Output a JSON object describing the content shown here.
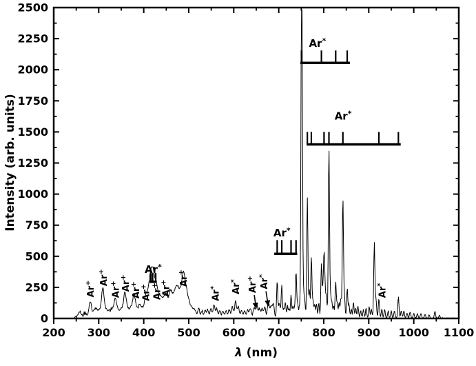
{
  "chart_data": {
    "type": "line",
    "title": "",
    "xlabel_symbol": "λ",
    "xlabel_rest": " (nm)",
    "ylabel": "Intensity (arb. units)",
    "xlim": [
      200,
      1100
    ],
    "ylim": [
      0,
      2500
    ],
    "x_major_ticks": [
      200,
      300,
      400,
      500,
      600,
      700,
      800,
      900,
      1000,
      1100
    ],
    "x_minor_step": 50,
    "y_major_ticks": [
      0,
      250,
      500,
      750,
      1000,
      1250,
      1500,
      1750,
      2000,
      2250,
      2500
    ],
    "y_minor_step": 125,
    "series_color": "#000000",
    "background_color": "#ffffff",
    "legend": null,
    "grid": false,
    "peaks": [
      [
        258,
        45
      ],
      [
        270,
        28
      ],
      [
        281,
        125
      ],
      [
        289,
        45
      ],
      [
        295,
        65
      ],
      [
        302,
        50
      ],
      [
        309,
        235
      ],
      [
        316,
        60
      ],
      [
        323,
        48
      ],
      [
        330,
        62
      ],
      [
        337,
        150
      ],
      [
        344,
        58
      ],
      [
        351,
        68
      ],
      [
        358,
        195
      ],
      [
        364,
        65
      ],
      [
        371,
        78
      ],
      [
        378,
        175
      ],
      [
        384,
        72
      ],
      [
        391,
        95
      ],
      [
        397,
        65
      ],
      [
        404,
        150
      ],
      [
        409,
        125
      ],
      [
        413,
        150
      ],
      [
        416,
        195
      ],
      [
        420,
        265
      ],
      [
        424,
        165
      ],
      [
        428,
        190
      ],
      [
        433,
        135
      ],
      [
        438,
        115
      ],
      [
        443,
        108
      ],
      [
        448,
        132
      ],
      [
        452,
        100
      ],
      [
        457,
        112
      ],
      [
        461,
        148
      ],
      [
        466,
        118
      ],
      [
        470,
        132
      ],
      [
        474,
        162
      ],
      [
        478,
        122
      ],
      [
        482,
        138
      ],
      [
        486,
        145
      ],
      [
        489,
        220
      ],
      [
        493,
        152
      ],
      [
        497,
        122
      ],
      [
        502,
        88
      ],
      [
        508,
        62
      ],
      [
        514,
        52
      ],
      [
        522,
        72
      ],
      [
        529,
        48
      ],
      [
        536,
        58
      ],
      [
        542,
        62
      ],
      [
        549,
        72
      ],
      [
        556,
        102
      ],
      [
        562,
        72
      ],
      [
        569,
        58
      ],
      [
        576,
        48
      ],
      [
        583,
        58
      ],
      [
        590,
        62
      ],
      [
        597,
        78
      ],
      [
        604,
        132
      ],
      [
        610,
        88
      ],
      [
        617,
        58
      ],
      [
        624,
        52
      ],
      [
        631,
        62
      ],
      [
        637,
        72
      ],
      [
        645,
        78
      ],
      [
        651,
        112
      ],
      [
        657,
        65
      ],
      [
        663,
        72
      ],
      [
        669,
        82
      ],
      [
        677,
        132
      ],
      [
        683,
        92
      ],
      [
        688,
        112
      ],
      [
        696.5,
        300
      ],
      [
        700.5,
        95
      ],
      [
        703,
        70
      ],
      [
        706.7,
        260
      ],
      [
        711,
        75
      ],
      [
        714.7,
        122
      ],
      [
        719.5,
        92
      ],
      [
        723,
        70
      ],
      [
        727.3,
        180
      ],
      [
        731.5,
        95
      ],
      [
        735,
        80
      ],
      [
        738.4,
        370
      ],
      [
        742,
        115
      ],
      [
        746,
        90
      ],
      [
        750.4,
        1975
      ],
      [
        751.8,
        1480
      ],
      [
        755,
        160
      ],
      [
        757.5,
        130
      ],
      [
        763.5,
        960
      ],
      [
        768,
        225
      ],
      [
        772.4,
        490
      ],
      [
        776,
        140
      ],
      [
        780,
        110
      ],
      [
        784,
        105
      ],
      [
        789,
        115
      ],
      [
        794.8,
        430
      ],
      [
        798,
        180
      ],
      [
        800.6,
        470
      ],
      [
        803,
        200
      ],
      [
        806,
        160
      ],
      [
        811.5,
        1360
      ],
      [
        815,
        170
      ],
      [
        818,
        120
      ],
      [
        822,
        95
      ],
      [
        826.5,
        285
      ],
      [
        830,
        110
      ],
      [
        834,
        120
      ],
      [
        838,
        160
      ],
      [
        842.5,
        960
      ],
      [
        846,
        170
      ],
      [
        852.1,
        235
      ],
      [
        856,
        110
      ],
      [
        861,
        70
      ],
      [
        866,
        125
      ],
      [
        871,
        75
      ],
      [
        876,
        95
      ],
      [
        882,
        55
      ],
      [
        888,
        65
      ],
      [
        894,
        75
      ],
      [
        901,
        85
      ],
      [
        906,
        65
      ],
      [
        912.3,
        605
      ],
      [
        916,
        150
      ],
      [
        922.5,
        155
      ],
      [
        929,
        65
      ],
      [
        935,
        60
      ],
      [
        943,
        45
      ],
      [
        950,
        48
      ],
      [
        957,
        55
      ],
      [
        965.8,
        170
      ],
      [
        972,
        55
      ],
      [
        978,
        58
      ],
      [
        985,
        40
      ],
      [
        992,
        45
      ],
      [
        1000,
        38
      ],
      [
        1008,
        32
      ],
      [
        1016,
        38
      ],
      [
        1025,
        32
      ],
      [
        1034,
        28
      ],
      [
        1047,
        58
      ],
      [
        1057,
        22
      ]
    ],
    "noise_regions": [
      [
        200,
        246,
        2
      ],
      [
        246,
        520,
        20
      ],
      [
        520,
        693,
        14
      ],
      [
        693,
        945,
        12
      ],
      [
        945,
        1015,
        8
      ],
      [
        1015,
        1100,
        5
      ]
    ],
    "annotations": [
      {
        "base": "Ar",
        "sup": "+",
        "x": 281,
        "level": 170
      },
      {
        "base": "Ar",
        "sup": "+",
        "x": 310,
        "level": 260
      },
      {
        "base": "Ar",
        "sup": "+",
        "x": 337,
        "level": 165
      },
      {
        "base": "Ar",
        "sup": "+",
        "x": 359,
        "level": 215
      },
      {
        "base": "Ar",
        "sup": "+",
        "x": 382,
        "level": 160
      },
      {
        "base": "Ar",
        "sup": "+",
        "x": 404,
        "level": 140
      },
      {
        "base": "Ar",
        "sup": "+",
        "x": 429,
        "level": 150
      },
      {
        "base": "Ar",
        "sup": "+",
        "x": 449,
        "level": 175
      },
      {
        "base": "Ar",
        "sup": "+",
        "x": 488,
        "level": 255
      },
      {
        "base": "Ar",
        "sup": "*",
        "x": 559,
        "level": 140
      },
      {
        "base": "Ar",
        "sup": "*",
        "x": 604,
        "level": 195
      },
      {
        "base": "Ar",
        "sup": "+",
        "x": 641,
        "level": 205,
        "arrow_to": [
          650,
          75
        ]
      },
      {
        "base": "Ar",
        "sup": "*",
        "x": 667,
        "level": 235,
        "arrow_to": [
          677,
          95
        ]
      },
      {
        "base": "Ar",
        "sup": "*",
        "x": 929,
        "level": 165
      }
    ],
    "combs": [
      {
        "base": "Ar",
        "sup": "*",
        "label_x": 421,
        "label_level": 365,
        "bar": [
          413,
          429
        ],
        "bar_level": 295,
        "ticks": [
          415.8,
          419.8,
          426.6
        ],
        "tick_height": 70
      },
      {
        "base": "Ar",
        "sup": "*",
        "label_x": 707,
        "label_level": 660,
        "bar": [
          690,
          741
        ],
        "bar_level": 520,
        "ticks": [
          696.5,
          706.7,
          727.3,
          738.4
        ],
        "tick_height": 110
      },
      {
        "base": "Ar",
        "sup": "*",
        "label_x": 786,
        "label_level": 2185,
        "bar": [
          748,
          858
        ],
        "bar_level": 2055,
        "ticks": [
          750.4,
          794.8,
          826.5,
          852.1
        ],
        "tick_height": 100
      },
      {
        "base": "Ar",
        "sup": "*",
        "label_x": 843,
        "label_level": 1600,
        "bar": [
          762,
          971
        ],
        "bar_level": 1400,
        "ticks": [
          763.5,
          772.4,
          800.6,
          811.5,
          842.5,
          922.5,
          965.8
        ],
        "tick_height": 100
      }
    ]
  }
}
